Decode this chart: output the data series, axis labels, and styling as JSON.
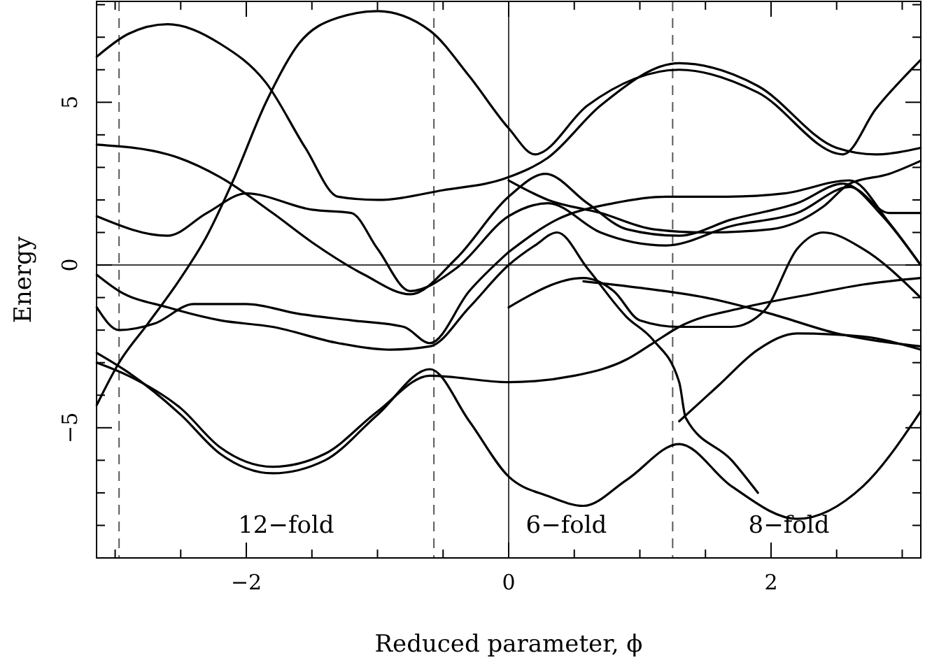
{
  "chart_data": {
    "type": "line",
    "xlabel": "Reduced parameter, ϕ",
    "ylabel": "Energy",
    "xlim": [
      -3.1416,
      3.1416
    ],
    "ylim": [
      -9,
      8.1
    ],
    "xticks": [
      {
        "value": -3,
        "label": null
      },
      {
        "value": -2.5,
        "label": null
      },
      {
        "value": -2,
        "label": "−2"
      },
      {
        "value": -1.5,
        "label": null
      },
      {
        "value": -1,
        "label": null
      },
      {
        "value": -0.5,
        "label": null
      },
      {
        "value": 0,
        "label": "0"
      },
      {
        "value": 0.5,
        "label": null
      },
      {
        "value": 1,
        "label": null
      },
      {
        "value": 1.5,
        "label": null
      },
      {
        "value": 2,
        "label": "2"
      },
      {
        "value": 2.5,
        "label": null
      },
      {
        "value": 3,
        "label": null
      }
    ],
    "yticks": [
      {
        "value": -9,
        "label": null
      },
      {
        "value": -8,
        "label": null
      },
      {
        "value": -7,
        "label": null
      },
      {
        "value": -6,
        "label": null
      },
      {
        "value": -5,
        "label": "−5"
      },
      {
        "value": -4,
        "label": null
      },
      {
        "value": -3,
        "label": null
      },
      {
        "value": -2,
        "label": null
      },
      {
        "value": -1,
        "label": null
      },
      {
        "value": 0,
        "label": "0"
      },
      {
        "value": 1,
        "label": null
      },
      {
        "value": 2,
        "label": null
      },
      {
        "value": 3,
        "label": null
      },
      {
        "value": 4,
        "label": null
      },
      {
        "value": 5,
        "label": "5"
      },
      {
        "value": 6,
        "label": null
      },
      {
        "value": 7,
        "label": null
      },
      {
        "value": 8,
        "label": null
      }
    ],
    "grid": false,
    "marker": "none",
    "line_style": "solid",
    "ref_lines": [
      {
        "axis": "y",
        "value": 0,
        "label": null,
        "color": "#000000",
        "line_style": "solid"
      },
      {
        "axis": "x",
        "value": 0,
        "label": null,
        "color": "#000000",
        "line_style": "solid"
      },
      {
        "axis": "x",
        "value": -2.97,
        "label": null,
        "color": "#000000",
        "line_style": "dashed"
      },
      {
        "axis": "x",
        "value": -0.57,
        "label": null,
        "color": "#000000",
        "line_style": "dashed"
      },
      {
        "axis": "x",
        "value": 1.25,
        "label": null,
        "color": "#000000",
        "line_style": "dashed"
      }
    ],
    "annotations": [
      "12−fold",
      "6−fold",
      "8−fold"
    ],
    "series": [
      {
        "color": "#000000",
        "x": [
          -3.14,
          -2.9,
          -2.6,
          -2.2,
          -1.85,
          -1.55,
          -1.3,
          -1.0,
          -0.5,
          0,
          0.3,
          0.7,
          1.3,
          1.9,
          2.5,
          2.8,
          3.14
        ],
        "values": [
          6.4,
          7.1,
          7.4,
          6.8,
          5.6,
          3.6,
          2.1,
          2.0,
          2.3,
          2.7,
          3.3,
          4.9,
          6.2,
          5.5,
          3.6,
          3.4,
          3.6
        ]
      },
      {
        "color": "#000000",
        "x": [
          -3.14,
          -2.97,
          -2.75,
          -2.5,
          -2.3,
          -2.1,
          -1.85,
          -1.6,
          -1.3,
          -1.0,
          -0.6,
          -0.3,
          0,
          0.2,
          0.6,
          1.3,
          1.9,
          2.55,
          2.8,
          3.14
        ],
        "values": [
          -4.3,
          -3.0,
          -1.8,
          -0.4,
          0.9,
          2.6,
          5.0,
          6.8,
          7.6,
          7.8,
          7.2,
          5.8,
          4.2,
          3.4,
          4.9,
          6.0,
          5.3,
          3.4,
          4.8,
          6.3
        ]
      },
      {
        "color": "#000000",
        "x": [
          -3.14,
          -2.6,
          -2.2,
          -1.8,
          -1.5,
          -1.1,
          -0.75,
          -0.4,
          0,
          0.28,
          0.6,
          0.9,
          1.3,
          1.7,
          2.2,
          2.55,
          2.85,
          3.14
        ],
        "values": [
          3.7,
          3.4,
          2.7,
          1.6,
          0.7,
          -0.3,
          -0.9,
          0.2,
          2.1,
          2.8,
          1.9,
          1.1,
          0.9,
          1.4,
          1.9,
          2.5,
          1.5,
          0
        ]
      },
      {
        "color": "#000000",
        "x": [
          -3.14,
          -2.9,
          -2.5,
          -2.2,
          -1.8,
          -1.4,
          -1.0,
          -0.6,
          -0.3,
          0,
          0.3,
          0.57,
          0.9,
          1.3,
          1.7,
          2.2,
          2.7,
          3.14
        ],
        "values": [
          -2.7,
          -3.3,
          -4.6,
          -5.8,
          -6.4,
          -6.0,
          -4.6,
          -3.2,
          -4.8,
          -6.5,
          -7.1,
          -7.4,
          -6.6,
          -5.5,
          -6.8,
          -7.8,
          -6.8,
          -4.5
        ]
      },
      {
        "color": "#000000",
        "x": [
          -3.14,
          -2.9,
          -2.5,
          -2.2,
          -1.8,
          -1.4,
          -1.0,
          -0.6,
          0,
          0.5,
          0.9,
          1.1,
          1.3,
          1.8,
          2.3,
          2.7,
          3.14
        ],
        "values": [
          -3.0,
          -3.4,
          -4.4,
          -5.6,
          -6.2,
          -5.8,
          -4.5,
          -3.4,
          -3.6,
          -3.4,
          -2.9,
          -2.4,
          -1.9,
          -1.3,
          -0.9,
          -0.6,
          -0.4
        ]
      },
      {
        "color": "#000000",
        "x": [
          -3.14,
          -2.97,
          -2.6,
          -2.2,
          -1.8,
          -1.3,
          -0.9,
          -0.6,
          -0.3,
          0,
          0.2,
          0.37,
          0.6,
          0.9,
          1.1,
          1.3,
          1.35,
          1.7,
          1.9
        ],
        "values": [
          -0.3,
          -0.8,
          -1.3,
          -1.7,
          -1.9,
          -2.4,
          -2.6,
          -2.5,
          -1.3,
          0,
          0.6,
          1.0,
          -0.1,
          -1.6,
          -2.3,
          -3.6,
          -4.7,
          -6.0,
          -7.0
        ]
      },
      {
        "color": "#000000",
        "x": [
          -3.14,
          -2.97,
          -2.7,
          -2.4,
          -2.0,
          -1.6,
          -1.2,
          -0.8,
          -0.6,
          -0.3,
          0
        ],
        "values": [
          -1.3,
          -2.0,
          -1.8,
          -1.2,
          -1.2,
          -1.5,
          -1.7,
          -1.9,
          -2.4,
          -0.8,
          0.4
        ]
      },
      {
        "color": "#000000",
        "x": [
          0,
          0.37,
          0.8,
          1.2,
          1.67,
          2.1,
          2.6,
          2.9,
          3.14
        ],
        "values": [
          0.4,
          1.4,
          1.9,
          2.1,
          2.1,
          2.2,
          2.6,
          1.3,
          0
        ]
      },
      {
        "color": "#000000",
        "x": [
          0,
          0.3,
          0.7,
          1.1,
          1.5,
          2.0,
          2.4,
          2.6,
          2.9,
          3.14
        ],
        "values": [
          2.6,
          2.0,
          1.6,
          1.1,
          1.0,
          1.1,
          1.8,
          2.5,
          2.8,
          3.2
        ]
      },
      {
        "color": "#000000",
        "x": [
          0,
          0.57,
          0.8,
          1.0,
          1.3,
          1.7,
          1.95,
          2.2,
          2.4,
          2.7,
          3.14
        ],
        "values": [
          -1.3,
          -0.4,
          -0.8,
          -1.7,
          -1.9,
          -1.9,
          -1.4,
          0.5,
          1.0,
          0.5,
          -1.0
        ]
      },
      {
        "color": "#000000",
        "x": [
          0.57,
          1.0,
          1.5,
          2.0,
          2.5,
          3.14
        ],
        "values": [
          -0.5,
          -0.7,
          -1.0,
          -1.5,
          -2.1,
          -2.5
        ]
      },
      {
        "color": "#000000",
        "x": [
          1.3,
          1.6,
          1.9,
          2.2,
          2.7,
          3.14
        ],
        "values": [
          -4.8,
          -3.7,
          -2.6,
          -2.1,
          -2.2,
          -2.6
        ]
      },
      {
        "color": "#000000",
        "x": [
          -3.14,
          -2.6,
          -2.3,
          -2.0,
          -1.5,
          -1.2,
          -1.0,
          -0.75,
          -0.4,
          0,
          0.3,
          0.7,
          1.2,
          1.7,
          2.2,
          2.6,
          2.9,
          3.14
        ],
        "values": [
          1.5,
          0.9,
          1.6,
          2.2,
          1.7,
          1.6,
          0.5,
          -0.8,
          -0.1,
          1.5,
          1.9,
          1.0,
          0.6,
          1.2,
          1.6,
          2.4,
          1.6,
          1.6
        ]
      }
    ]
  }
}
